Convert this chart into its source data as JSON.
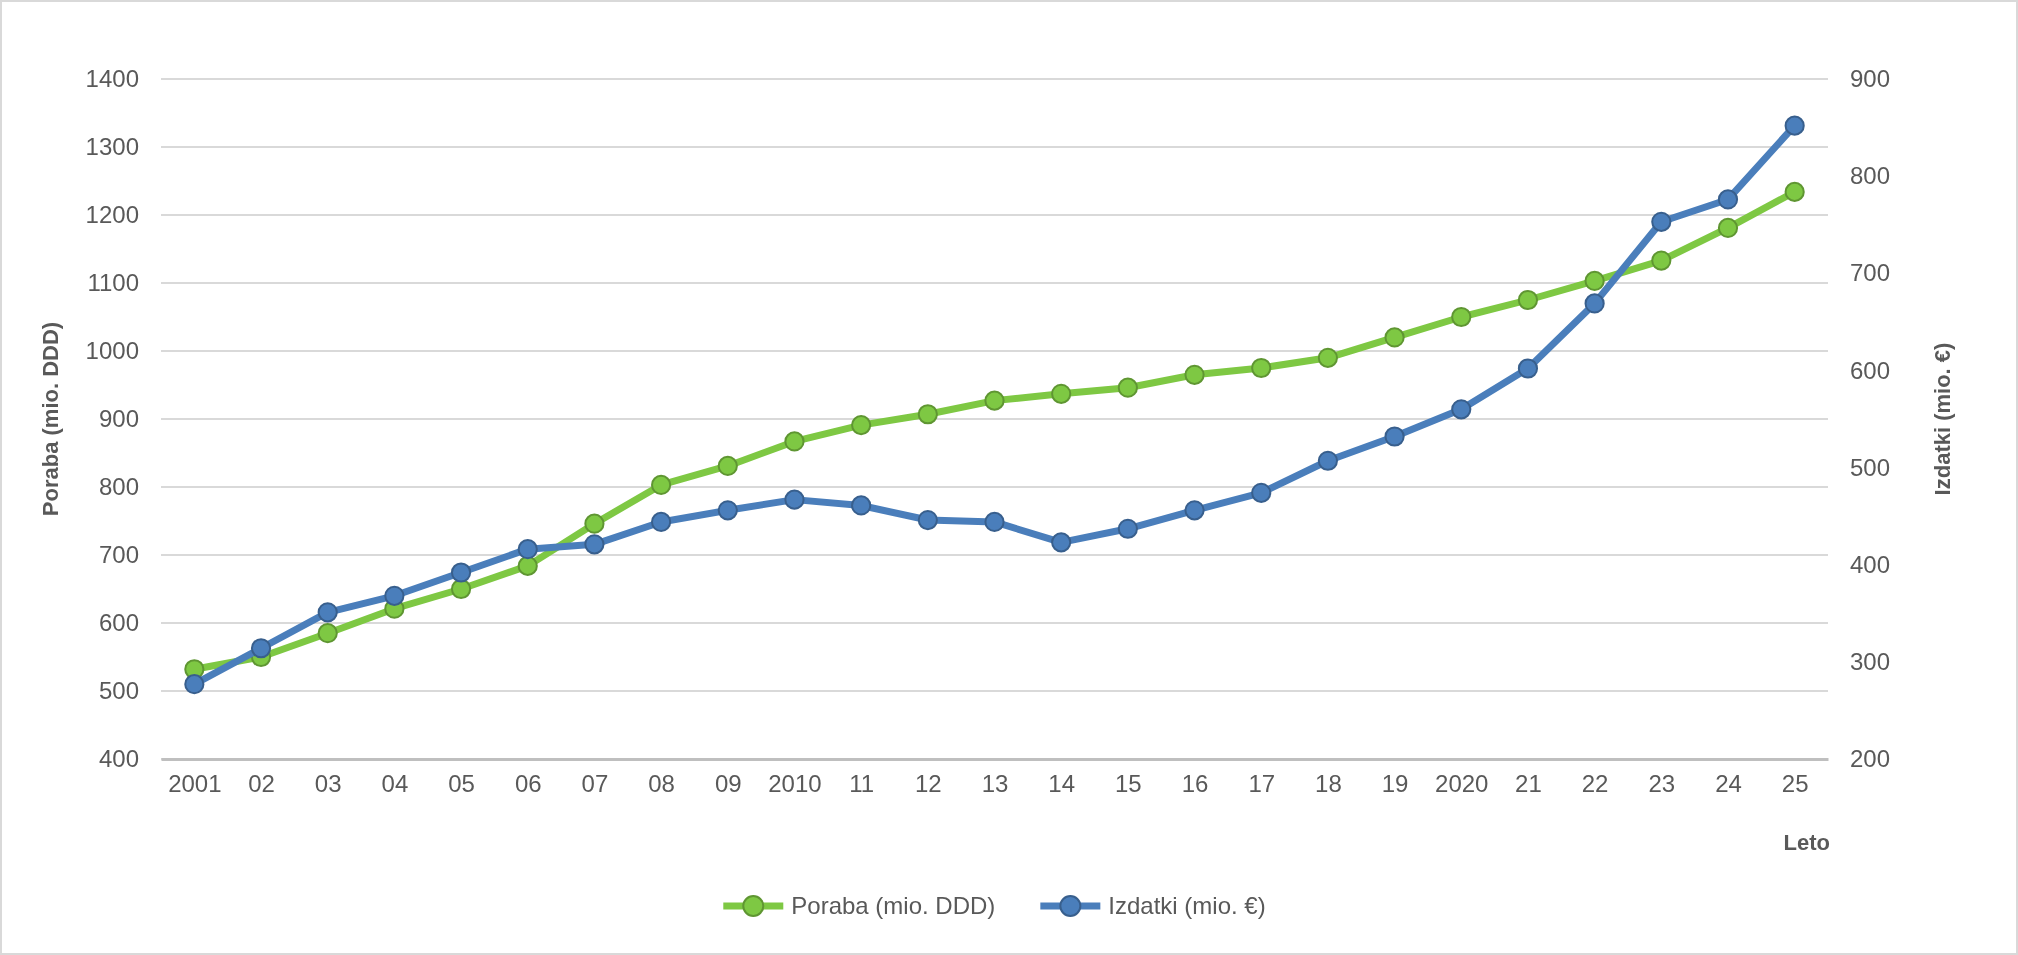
{
  "chart_data": {
    "type": "line",
    "xlabel": "Leto",
    "ylabel": "Poraba (mio. DDD)",
    "y2label": "Izdatki (mio. €)",
    "categories": [
      "2001",
      "02",
      "03",
      "04",
      "05",
      "06",
      "07",
      "08",
      "09",
      "2010",
      "11",
      "12",
      "13",
      "14",
      "15",
      "16",
      "17",
      "18",
      "19",
      "2020",
      "21",
      "22",
      "23",
      "24",
      "25"
    ],
    "series": [
      {
        "name": "Poraba (mio. DDD)",
        "color": "#7ec843",
        "values": [
          532,
          550,
          585,
          621,
          650,
          684,
          746,
          803,
          831,
          867,
          891,
          907,
          927,
          937,
          946,
          965,
          975,
          990,
          1020,
          1050,
          1075,
          1103,
          1133,
          1181,
          1234
        ]
      },
      {
        "name": "Izdatki (mio. €)",
        "color": "#4a7ebb",
        "axis": "y2",
        "values": [
          277,
          314,
          351,
          368,
          392,
          416,
          421,
          444,
          456,
          467,
          461,
          446,
          444,
          423,
          437,
          456,
          474,
          507,
          532,
          560,
          602,
          669,
          753,
          776,
          852
        ]
      }
    ],
    "ylim": [
      400,
      1400
    ],
    "yticks": [
      400,
      500,
      600,
      700,
      800,
      900,
      1000,
      1100,
      1200,
      1300,
      1400
    ],
    "y2lim": [
      200,
      900
    ],
    "y2ticks": [
      200,
      300,
      400,
      500,
      600,
      700,
      800,
      900
    ],
    "grid": "y",
    "legend": "bottom",
    "marker": "circle",
    "line_style": "solid"
  }
}
